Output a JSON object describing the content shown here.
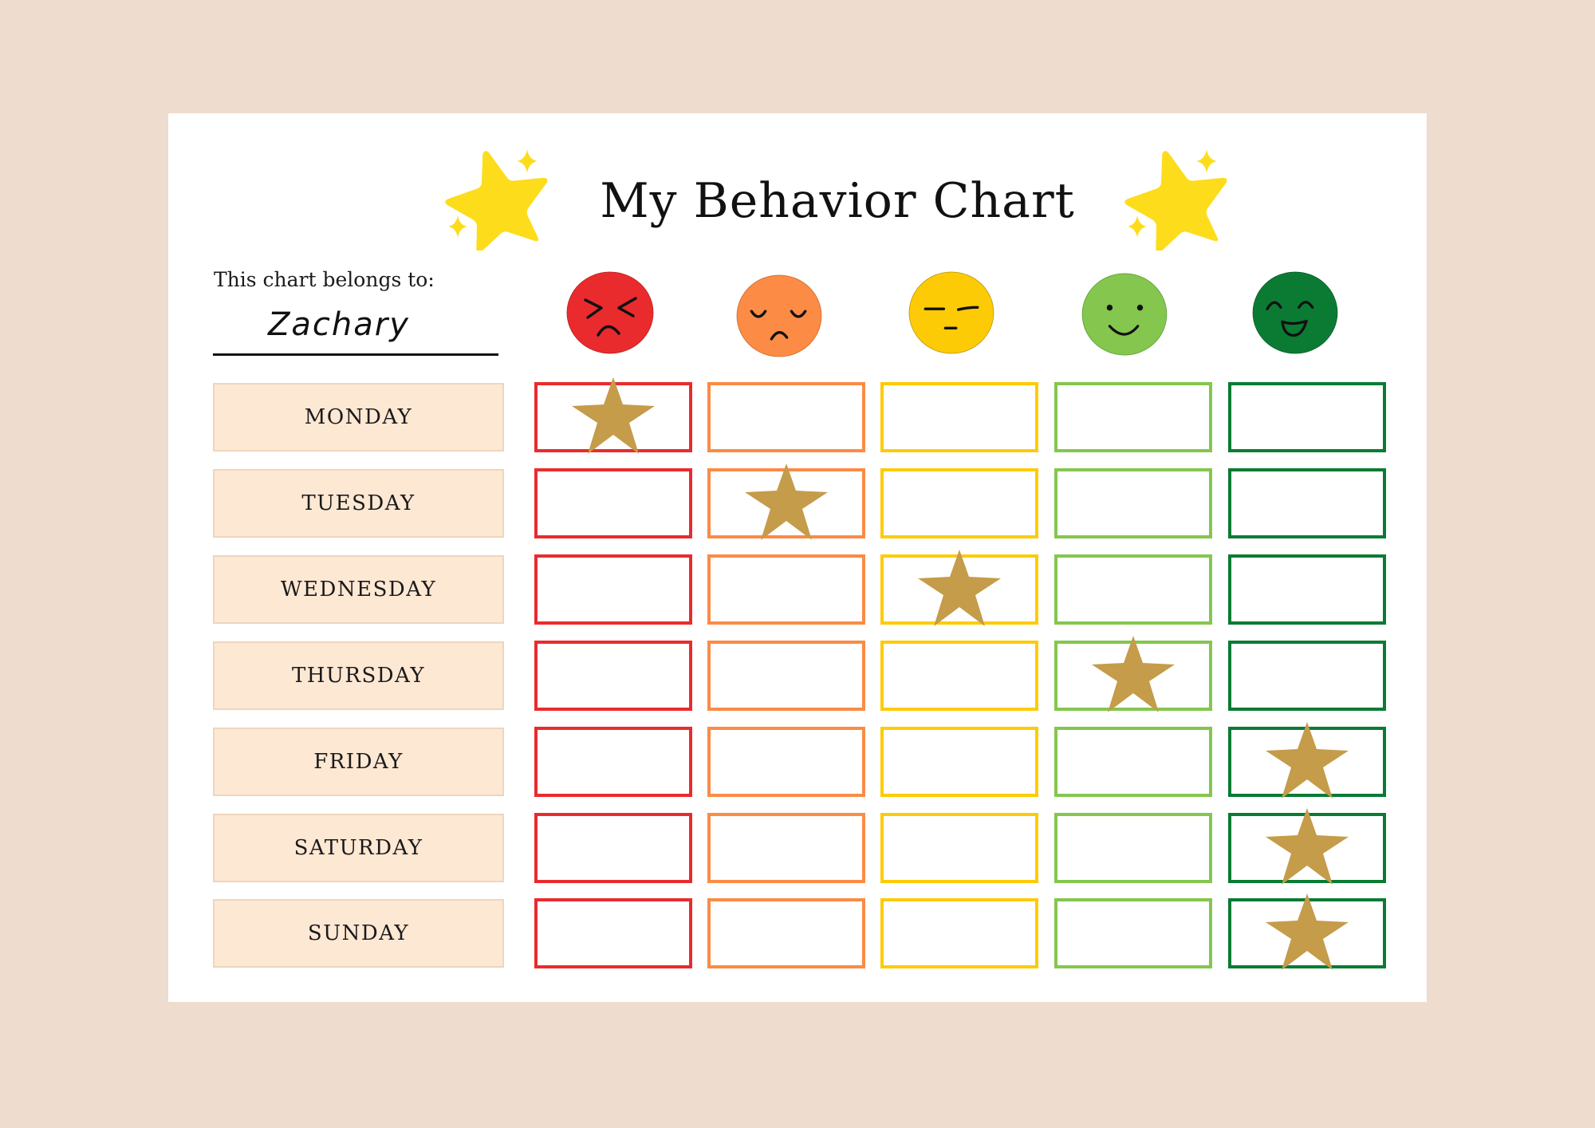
{
  "title": "My Behavior Chart",
  "owner": {
    "label": "This chart belongs to:",
    "name": "Zachary"
  },
  "colors": {
    "background": "#EEDCCF",
    "card": "#FFFFFF",
    "day_label_bg": "#FDE8D4",
    "day_label_border": "#EFD5BD",
    "title_star": "#FDDC1C",
    "sticker_star": "#C49C4A"
  },
  "mood_columns": [
    {
      "mood": "angry",
      "icon": "angry-face-icon",
      "color": "#E92B2D"
    },
    {
      "mood": "sad",
      "icon": "sad-face-icon",
      "color": "#FB8B45"
    },
    {
      "mood": "neutral",
      "icon": "neutral-face-icon",
      "color": "#FDCB05"
    },
    {
      "mood": "happy",
      "icon": "smiling-face-icon",
      "color": "#84C64E"
    },
    {
      "mood": "very-happy",
      "icon": "grinning-face-icon",
      "color": "#0B7B34"
    }
  ],
  "days": [
    {
      "label": "MONDAY",
      "star_column": 0
    },
    {
      "label": "TUESDAY",
      "star_column": 1
    },
    {
      "label": "WEDNESDAY",
      "star_column": 2
    },
    {
      "label": "THURSDAY",
      "star_column": 3
    },
    {
      "label": "FRIDAY",
      "star_column": 4
    },
    {
      "label": "SATURDAY",
      "star_column": 4
    },
    {
      "label": "SUNDAY",
      "star_column": 4
    }
  ]
}
